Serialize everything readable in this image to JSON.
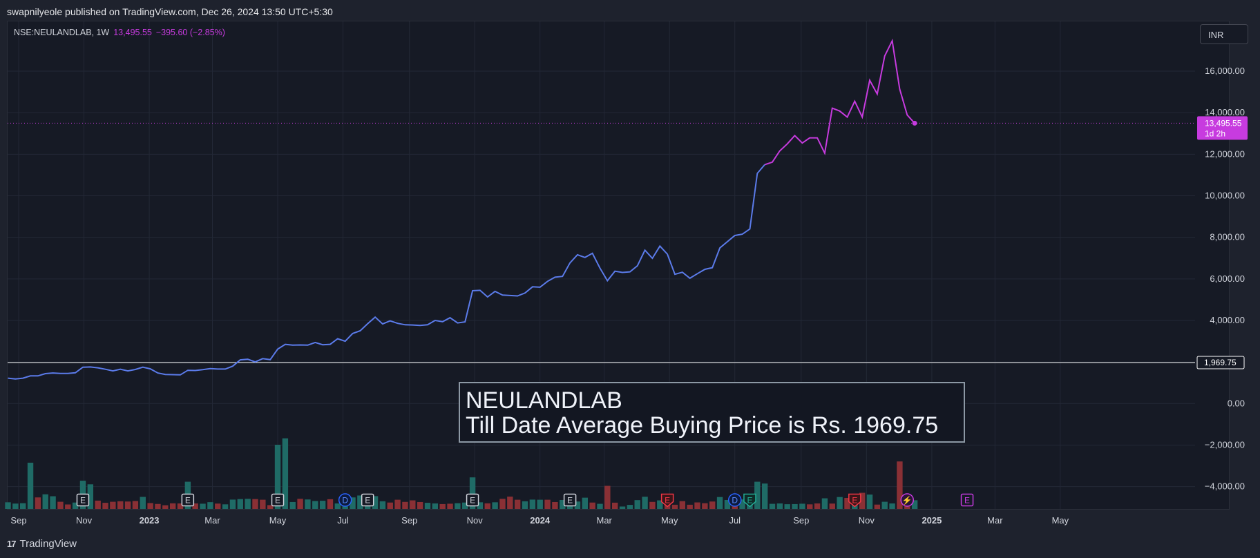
{
  "header": {
    "published": "swapnilyeole published on TradingView.com, Dec 26, 2024 13:50 UTC+5:30"
  },
  "legend": {
    "symbol": "NSE:NEULANDLAB, 1W",
    "last": "13,495.55",
    "change": "−395.60 (−2.85%)"
  },
  "currency": "INR",
  "annotation": {
    "line1": "NEULANDLAB",
    "line2": "Till Date Average Buying Price is Rs. 1969.75"
  },
  "price_tag": {
    "value": "13,495.55",
    "countdown": "1d 2h"
  },
  "ref_tag": "1,969.75",
  "footer": {
    "brand": "TradingView",
    "logo_mark": "17"
  },
  "colors": {
    "line_blue": "#5b7bea",
    "line_purple": "#c73bdf",
    "vol_up": "#1f6b66",
    "vol_down": "#8a3035",
    "ref_line": "#ffffff"
  },
  "chart_data": {
    "type": "line",
    "symbol": "NSE:NEULANDLAB",
    "interval": "1W",
    "ylim": [
      -5000,
      17500
    ],
    "y_ticks": [
      16000,
      14000,
      12000,
      10000,
      8000,
      6000,
      4000,
      2000,
      0,
      -2000,
      -4000
    ],
    "y_tick_labels": [
      "16,000.00",
      "14,000.00",
      "12,000.00",
      "10,000.00",
      "8,000.00",
      "6,000.00",
      "4,000.00",
      "",
      "0.00",
      "−2,000.00",
      "−4,000.00"
    ],
    "x_ticks": [
      {
        "label": "Sep",
        "bold": false,
        "date": "2022-09-01"
      },
      {
        "label": "Nov",
        "bold": false,
        "date": "2022-11-01"
      },
      {
        "label": "2023",
        "bold": true,
        "date": "2023-01-01"
      },
      {
        "label": "Mar",
        "bold": false,
        "date": "2023-03-01"
      },
      {
        "label": "May",
        "bold": false,
        "date": "2023-05-01"
      },
      {
        "label": "Jul",
        "bold": false,
        "date": "2023-07-01"
      },
      {
        "label": "Sep",
        "bold": false,
        "date": "2023-09-01"
      },
      {
        "label": "Nov",
        "bold": false,
        "date": "2023-11-01"
      },
      {
        "label": "2024",
        "bold": true,
        "date": "2024-01-01"
      },
      {
        "label": "Mar",
        "bold": false,
        "date": "2024-03-01"
      },
      {
        "label": "May",
        "bold": false,
        "date": "2024-05-01"
      },
      {
        "label": "Jul",
        "bold": false,
        "date": "2024-07-01"
      },
      {
        "label": "Sep",
        "bold": false,
        "date": "2024-09-01"
      },
      {
        "label": "Nov",
        "bold": false,
        "date": "2024-11-01"
      },
      {
        "label": "2025",
        "bold": true,
        "date": "2025-01-01"
      },
      {
        "label": "Mar",
        "bold": false,
        "date": "2025-03-01"
      },
      {
        "label": "May",
        "bold": false,
        "date": "2025-05-01"
      }
    ],
    "reference_line": 1969.75,
    "last_value": 13495.55,
    "price_line": {
      "name": "NSE:NEULANDLAB",
      "purple_from_index": 101,
      "values": [
        1220,
        1180,
        1220,
        1330,
        1330,
        1440,
        1470,
        1450,
        1450,
        1480,
        1750,
        1760,
        1720,
        1650,
        1570,
        1650,
        1570,
        1640,
        1750,
        1670,
        1470,
        1400,
        1390,
        1380,
        1600,
        1590,
        1630,
        1680,
        1660,
        1660,
        1800,
        2100,
        2130,
        2000,
        2160,
        2110,
        2620,
        2850,
        2810,
        2820,
        2810,
        2940,
        2830,
        2850,
        3120,
        3000,
        3370,
        3500,
        3840,
        4160,
        3830,
        3980,
        3860,
        3790,
        3780,
        3760,
        3790,
        4000,
        3940,
        4130,
        3880,
        3930,
        5430,
        5450,
        5130,
        5400,
        5220,
        5200,
        5180,
        5320,
        5620,
        5600,
        5880,
        6080,
        6120,
        6770,
        7160,
        7030,
        7230,
        6520,
        5910,
        6370,
        6310,
        6340,
        6630,
        7380,
        6990,
        7580,
        7190,
        6220,
        6320,
        6030,
        6250,
        6460,
        6540,
        7490,
        7790,
        8090,
        8150,
        8400,
        11080,
        11500,
        11620,
        12160,
        12500,
        12900,
        12540,
        12790,
        12790,
        12050,
        14220,
        14080,
        13790,
        14550,
        13790,
        15560,
        14900,
        16730,
        17460,
        15140,
        13890,
        13495.55
      ]
    },
    "volume_bars": [
      {
        "v": 0.52,
        "up": true
      },
      {
        "v": 0.42,
        "up": true
      },
      {
        "v": 0.45,
        "up": true
      },
      {
        "v": 3.6,
        "up": true
      },
      {
        "v": 0.9,
        "up": false
      },
      {
        "v": 1.14,
        "up": true
      },
      {
        "v": 0.99,
        "up": true
      },
      {
        "v": 0.56,
        "up": false
      },
      {
        "v": 0.35,
        "up": false
      },
      {
        "v": 0.5,
        "up": true
      },
      {
        "v": 2.2,
        "up": true
      },
      {
        "v": 1.92,
        "up": true
      },
      {
        "v": 0.65,
        "up": false
      },
      {
        "v": 0.48,
        "up": false
      },
      {
        "v": 0.56,
        "up": false
      },
      {
        "v": 0.6,
        "up": false
      },
      {
        "v": 0.58,
        "up": false
      },
      {
        "v": 0.62,
        "up": false
      },
      {
        "v": 0.94,
        "up": true
      },
      {
        "v": 0.46,
        "up": false
      },
      {
        "v": 0.39,
        "up": false
      },
      {
        "v": 0.29,
        "up": false
      },
      {
        "v": 0.44,
        "up": false
      },
      {
        "v": 0.43,
        "up": false
      },
      {
        "v": 2.12,
        "up": true
      },
      {
        "v": 0.43,
        "up": false
      },
      {
        "v": 0.41,
        "up": true
      },
      {
        "v": 0.53,
        "up": true
      },
      {
        "v": 0.42,
        "up": false
      },
      {
        "v": 0.36,
        "up": true
      },
      {
        "v": 0.73,
        "up": true
      },
      {
        "v": 0.77,
        "up": true
      },
      {
        "v": 0.79,
        "up": true
      },
      {
        "v": 0.77,
        "up": false
      },
      {
        "v": 0.72,
        "up": false
      },
      {
        "v": 0.3,
        "up": false
      },
      {
        "v": 5.0,
        "up": true
      },
      {
        "v": 5.5,
        "up": true
      },
      {
        "v": 0.54,
        "up": true
      },
      {
        "v": 0.79,
        "up": false
      },
      {
        "v": 0.74,
        "up": true
      },
      {
        "v": 0.62,
        "up": true
      },
      {
        "v": 0.64,
        "up": true
      },
      {
        "v": 0.76,
        "up": false
      },
      {
        "v": 0.43,
        "up": true
      },
      {
        "v": 0.68,
        "up": true
      },
      {
        "v": 0.9,
        "up": true
      },
      {
        "v": 1.05,
        "up": true
      },
      {
        "v": 1.1,
        "up": true
      },
      {
        "v": 1.0,
        "up": true
      },
      {
        "v": 0.6,
        "up": true
      },
      {
        "v": 0.5,
        "up": false
      },
      {
        "v": 0.72,
        "up": false
      },
      {
        "v": 0.55,
        "up": false
      },
      {
        "v": 0.67,
        "up": false
      },
      {
        "v": 0.54,
        "up": false
      },
      {
        "v": 0.48,
        "up": true
      },
      {
        "v": 0.43,
        "up": true
      },
      {
        "v": 0.38,
        "up": false
      },
      {
        "v": 0.41,
        "up": false
      },
      {
        "v": 0.45,
        "up": true
      },
      {
        "v": 0.5,
        "up": true
      },
      {
        "v": 2.46,
        "up": true
      },
      {
        "v": 0.52,
        "up": true
      },
      {
        "v": 0.44,
        "up": false
      },
      {
        "v": 0.52,
        "up": true
      },
      {
        "v": 0.79,
        "up": false
      },
      {
        "v": 0.96,
        "up": false
      },
      {
        "v": 0.72,
        "up": false
      },
      {
        "v": 0.6,
        "up": true
      },
      {
        "v": 0.73,
        "up": true
      },
      {
        "v": 0.72,
        "up": true
      },
      {
        "v": 0.72,
        "up": false
      },
      {
        "v": 0.54,
        "up": false
      },
      {
        "v": 0.7,
        "up": true
      },
      {
        "v": 0.54,
        "up": true
      },
      {
        "v": 0.58,
        "up": true
      },
      {
        "v": 0.88,
        "up": true
      },
      {
        "v": 0.5,
        "up": false
      },
      {
        "v": 0.4,
        "up": true
      },
      {
        "v": 1.8,
        "up": false
      },
      {
        "v": 0.49,
        "up": false
      },
      {
        "v": 0.19,
        "up": true
      },
      {
        "v": 0.32,
        "up": true
      },
      {
        "v": 0.69,
        "up": true
      },
      {
        "v": 0.95,
        "up": true
      },
      {
        "v": 0.55,
        "up": false
      },
      {
        "v": 0.67,
        "up": true
      },
      {
        "v": 1.05,
        "up": false
      },
      {
        "v": 0.33,
        "up": false
      },
      {
        "v": 0.61,
        "up": false
      },
      {
        "v": 0.33,
        "up": false
      },
      {
        "v": 0.51,
        "up": false
      },
      {
        "v": 0.45,
        "up": false
      },
      {
        "v": 0.58,
        "up": false
      },
      {
        "v": 0.93,
        "up": true
      },
      {
        "v": 0.7,
        "up": true
      },
      {
        "v": 0.46,
        "up": false
      },
      {
        "v": 0.74,
        "up": true
      },
      {
        "v": 0.77,
        "up": true
      },
      {
        "v": 2.12,
        "up": true
      },
      {
        "v": 1.98,
        "up": true
      },
      {
        "v": 0.4,
        "up": true
      },
      {
        "v": 0.43,
        "up": true
      },
      {
        "v": 0.37,
        "up": true
      },
      {
        "v": 0.38,
        "up": true
      },
      {
        "v": 0.41,
        "up": true
      },
      {
        "v": 0.36,
        "up": false
      },
      {
        "v": 0.43,
        "up": false
      },
      {
        "v": 0.83,
        "up": true
      },
      {
        "v": 0.42,
        "up": false
      },
      {
        "v": 0.93,
        "up": true
      },
      {
        "v": 0.86,
        "up": false
      },
      {
        "v": 1.05,
        "up": true
      },
      {
        "v": 1.26,
        "up": false
      },
      {
        "v": 1.12,
        "up": true
      },
      {
        "v": 0.34,
        "up": false
      },
      {
        "v": 0.56,
        "up": true
      },
      {
        "v": 0.43,
        "up": true
      },
      {
        "v": 3.7,
        "up": false
      },
      {
        "v": 1.12,
        "up": false
      },
      {
        "v": 0.68,
        "up": true
      }
    ],
    "events": [
      {
        "type": "E",
        "index": 10,
        "style": "earnings"
      },
      {
        "type": "E",
        "index": 24,
        "style": "earnings"
      },
      {
        "type": "E",
        "index": 36,
        "style": "earnings"
      },
      {
        "type": "D",
        "index": 45,
        "style": "dividend"
      },
      {
        "type": "E",
        "index": 48,
        "style": "earnings"
      },
      {
        "type": "E",
        "index": 62,
        "style": "earnings"
      },
      {
        "type": "E",
        "index": 75,
        "style": "earnings"
      },
      {
        "type": "E",
        "index": 88,
        "style": "earnings-red"
      },
      {
        "type": "D",
        "index": 97,
        "style": "dividend"
      },
      {
        "type": "E",
        "index": 99,
        "style": "earnings-green"
      },
      {
        "type": "E",
        "index": 113,
        "style": "earnings-red"
      },
      {
        "type": "split",
        "index": 120,
        "style": "split"
      },
      {
        "type": "E",
        "index": 128,
        "style": "earnings-future"
      }
    ]
  }
}
